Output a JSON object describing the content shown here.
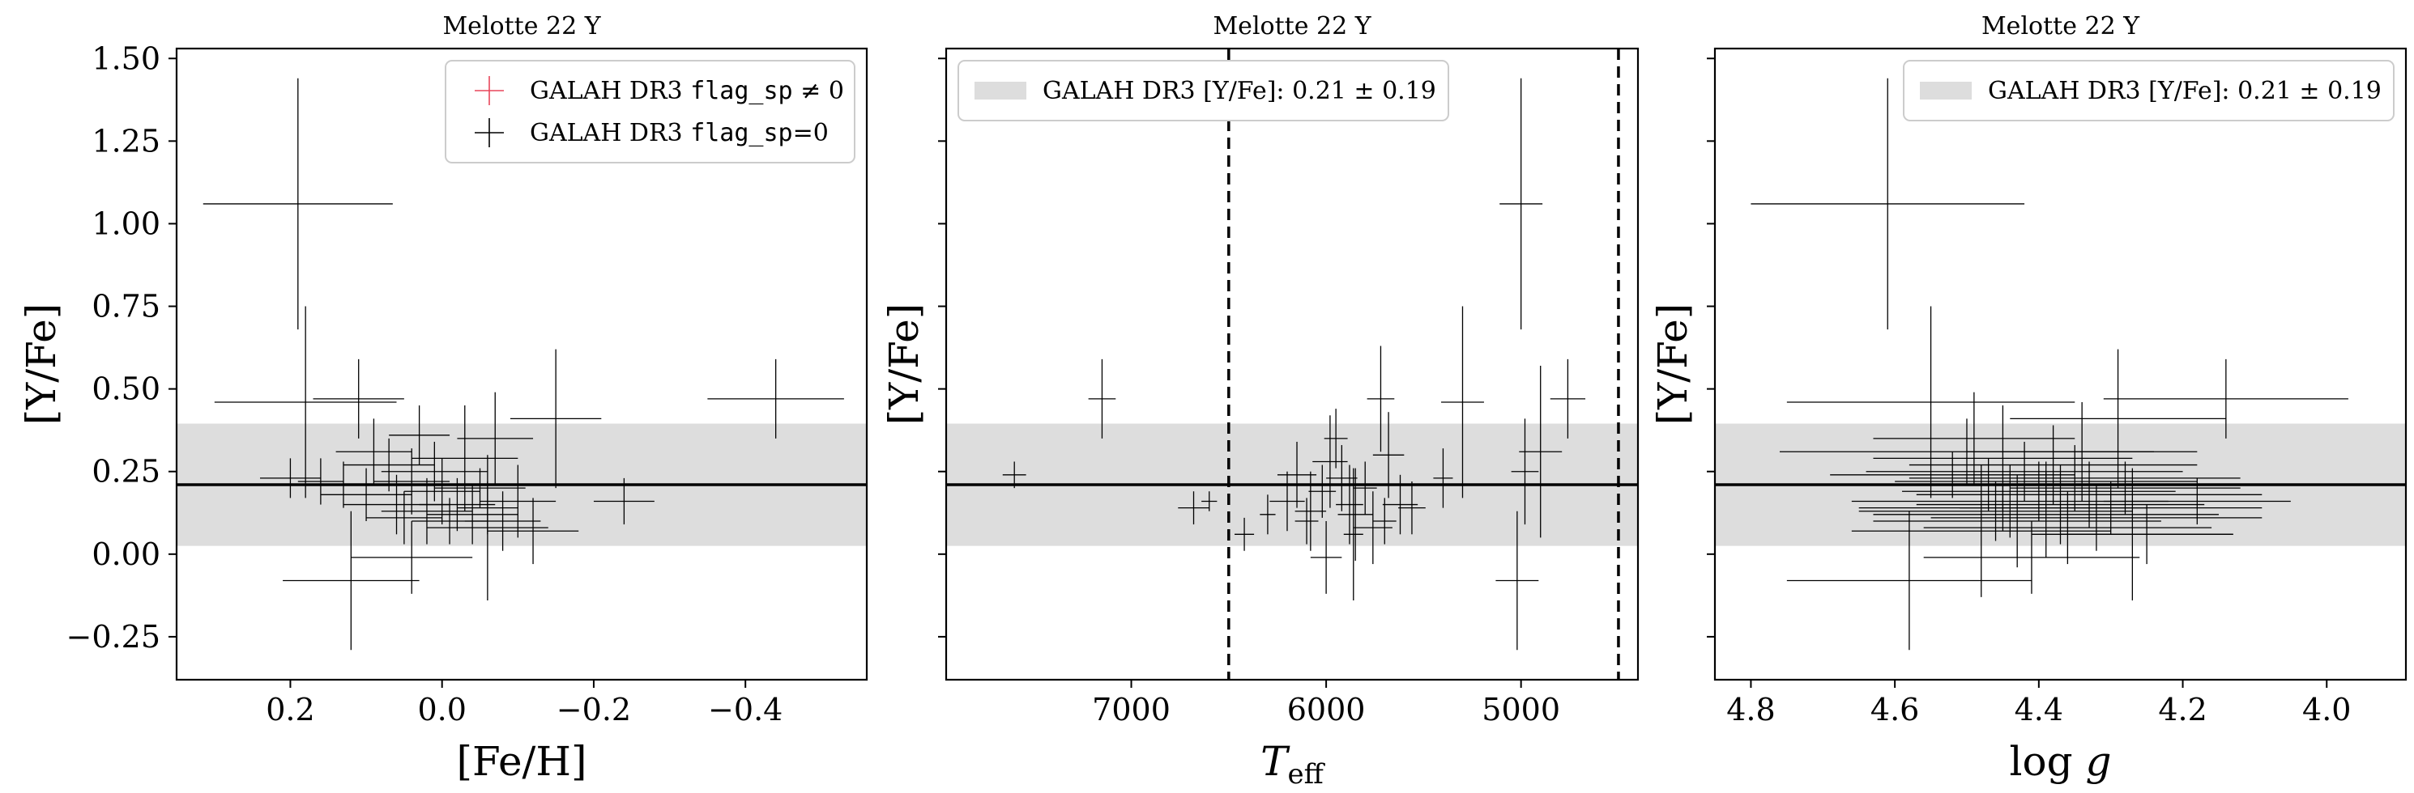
{
  "figure": {
    "colors": {
      "band": "#dddddd",
      "flagged": "#e8465a",
      "unflagged": "#000000"
    }
  },
  "chart_data": [
    {
      "type": "scatter",
      "title": "Melotte 22 Y",
      "xlabel": "[Fe/H]",
      "ylabel": "[Y/Fe]",
      "xlim": [
        0.35,
        -0.56
      ],
      "ylim": [
        -0.38,
        1.53
      ],
      "xticks": [
        {
          "v": 0.2,
          "t": "0.2"
        },
        {
          "v": 0.0,
          "t": "0.0"
        },
        {
          "v": -0.2,
          "t": "−0.2"
        },
        {
          "v": -0.4,
          "t": "−0.4"
        }
      ],
      "yticks": [
        {
          "v": -0.25,
          "t": "−0.25"
        },
        {
          "v": 0.0,
          "t": "0.00"
        },
        {
          "v": 0.25,
          "t": "0.25"
        },
        {
          "v": 0.5,
          "t": "0.50"
        },
        {
          "v": 0.75,
          "t": "0.75"
        },
        {
          "v": 1.0,
          "t": "1.00"
        },
        {
          "v": 1.25,
          "t": "1.25"
        },
        {
          "v": 1.5,
          "t": "1.50"
        }
      ],
      "show_ylabels": true,
      "legend": {
        "placement": "top-right",
        "entries": [
          {
            "prefix": "GALAH DR3 ",
            "code": "flag_sp",
            "suffix": " ≠ 0",
            "color": "#e8465a",
            "marker": "cross"
          },
          {
            "prefix": "GALAH DR3 ",
            "code": "flag_sp",
            "suffix": "=0",
            "color": "#000000",
            "marker": "cross"
          }
        ]
      },
      "band": {
        "center": 0.21,
        "half_width": 0.185
      },
      "series": [
        {
          "flag": "0",
          "points": [
            {
              "x": 0.19,
              "y": 1.06,
              "xe": 0.125,
              "ye": 0.38
            },
            {
              "x": 0.18,
              "y": 0.46,
              "xe": 0.12,
              "ye": 0.29
            },
            {
              "x": 0.11,
              "y": 0.47,
              "xe": 0.06,
              "ye": 0.12
            },
            {
              "x": -0.44,
              "y": 0.47,
              "xe": 0.09,
              "ye": 0.12
            },
            {
              "x": -0.15,
              "y": 0.41,
              "xe": 0.06,
              "ye": 0.21
            },
            {
              "x": 0.2,
              "y": 0.23,
              "xe": 0.04,
              "ye": 0.06
            },
            {
              "x": 0.16,
              "y": 0.22,
              "xe": 0.03,
              "ye": 0.07
            },
            {
              "x": 0.13,
              "y": 0.21,
              "xe": 0.05,
              "ye": 0.07
            },
            {
              "x": 0.1,
              "y": 0.18,
              "xe": 0.06,
              "ye": 0.08
            },
            {
              "x": 0.07,
              "y": 0.27,
              "xe": 0.06,
              "ye": 0.08
            },
            {
              "x": 0.04,
              "y": 0.22,
              "xe": 0.05,
              "ye": 0.1
            },
            {
              "x": 0.01,
              "y": 0.25,
              "xe": 0.07,
              "ye": 0.09
            },
            {
              "x": 0.0,
              "y": 0.19,
              "xe": 0.05,
              "ye": 0.1
            },
            {
              "x": -0.02,
              "y": 0.15,
              "xe": 0.05,
              "ye": 0.08
            },
            {
              "x": -0.04,
              "y": 0.12,
              "xe": 0.06,
              "ye": 0.09
            },
            {
              "x": -0.06,
              "y": 0.14,
              "xe": 0.04,
              "ye": 0.08
            },
            {
              "x": -0.08,
              "y": 0.1,
              "xe": 0.05,
              "ye": 0.09
            },
            {
              "x": -0.1,
              "y": 0.16,
              "xe": 0.05,
              "ye": 0.11
            },
            {
              "x": 0.02,
              "y": 0.13,
              "xe": 0.06,
              "ye": 0.1
            },
            {
              "x": 0.05,
              "y": 0.11,
              "xe": 0.05,
              "ye": 0.08
            },
            {
              "x": -0.03,
              "y": 0.29,
              "xe": 0.07,
              "ye": 0.16
            },
            {
              "x": -0.06,
              "y": 0.08,
              "xe": 0.08,
              "ye": 0.22
            },
            {
              "x": 0.12,
              "y": -0.08,
              "xe": 0.09,
              "ye": 0.21
            },
            {
              "x": 0.04,
              "y": -0.01,
              "xe": 0.08,
              "ye": 0.11
            },
            {
              "x": -0.12,
              "y": 0.07,
              "xe": 0.06,
              "ye": 0.1
            },
            {
              "x": -0.24,
              "y": 0.16,
              "xe": 0.04,
              "ye": 0.07
            },
            {
              "x": 0.09,
              "y": 0.31,
              "xe": 0.05,
              "ye": 0.1
            },
            {
              "x": -0.07,
              "y": 0.35,
              "xe": 0.05,
              "ye": 0.14
            },
            {
              "x": 0.06,
              "y": 0.15,
              "xe": 0.07,
              "ye": 0.09
            },
            {
              "x": -0.01,
              "y": 0.1,
              "xe": 0.05,
              "ye": 0.07
            },
            {
              "x": -0.05,
              "y": 0.2,
              "xe": 0.06,
              "ye": 0.06
            },
            {
              "x": 0.03,
              "y": 0.36,
              "xe": 0.04,
              "ye": 0.09
            }
          ]
        }
      ]
    },
    {
      "type": "scatter",
      "title": "Melotte 22 Y",
      "xlabel": "T_eff",
      "ylabel": "[Y/Fe]",
      "xlim": [
        7950,
        4400
      ],
      "ylim": [
        -0.38,
        1.53
      ],
      "xticks": [
        {
          "v": 7000,
          "t": "7000"
        },
        {
          "v": 6000,
          "t": "6000"
        },
        {
          "v": 5000,
          "t": "5000"
        }
      ],
      "yticks": [
        {
          "v": -0.25,
          "t": ""
        },
        {
          "v": 0.0,
          "t": ""
        },
        {
          "v": 0.25,
          "t": ""
        },
        {
          "v": 0.5,
          "t": ""
        },
        {
          "v": 0.75,
          "t": ""
        },
        {
          "v": 1.0,
          "t": ""
        },
        {
          "v": 1.25,
          "t": ""
        },
        {
          "v": 1.5,
          "t": ""
        }
      ],
      "show_ylabels": false,
      "legend": {
        "placement": "top-left",
        "entries": [
          {
            "prefix": "GALAH DR3 [Y/Fe]: 0.21 ± 0.19",
            "code": "",
            "suffix": "",
            "color": "#dddddd",
            "marker": "patch"
          }
        ]
      },
      "band": {
        "center": 0.21,
        "half_width": 0.185
      },
      "vlines": [
        6500,
        4500
      ],
      "series": [
        {
          "flag": "0",
          "points": [
            {
              "x": 7600,
              "y": 0.24,
              "xe": 60,
              "ye": 0.04
            },
            {
              "x": 7150,
              "y": 0.47,
              "xe": 70,
              "ye": 0.12
            },
            {
              "x": 6680,
              "y": 0.14,
              "xe": 80,
              "ye": 0.05
            },
            {
              "x": 6600,
              "y": 0.16,
              "xe": 40,
              "ye": 0.03
            },
            {
              "x": 6420,
              "y": 0.06,
              "xe": 50,
              "ye": 0.05
            },
            {
              "x": 6200,
              "y": 0.16,
              "xe": 90,
              "ye": 0.09
            },
            {
              "x": 6150,
              "y": 0.24,
              "xe": 100,
              "ye": 0.1
            },
            {
              "x": 6080,
              "y": 0.13,
              "xe": 80,
              "ye": 0.12
            },
            {
              "x": 6020,
              "y": 0.19,
              "xe": 70,
              "ye": 0.08
            },
            {
              "x": 5980,
              "y": 0.28,
              "xe": 90,
              "ye": 0.14
            },
            {
              "x": 5950,
              "y": 0.35,
              "xe": 60,
              "ye": 0.09
            },
            {
              "x": 5920,
              "y": 0.23,
              "xe": 80,
              "ye": 0.1
            },
            {
              "x": 5880,
              "y": 0.15,
              "xe": 70,
              "ye": 0.12
            },
            {
              "x": 5850,
              "y": 0.12,
              "xe": 90,
              "ye": 0.14
            },
            {
              "x": 5800,
              "y": 0.2,
              "xe": 60,
              "ye": 0.08
            },
            {
              "x": 5760,
              "y": 0.08,
              "xe": 100,
              "ye": 0.11
            },
            {
              "x": 5720,
              "y": 0.47,
              "xe": 70,
              "ye": 0.16
            },
            {
              "x": 5680,
              "y": 0.3,
              "xe": 80,
              "ye": 0.13
            },
            {
              "x": 5620,
              "y": 0.15,
              "xe": 90,
              "ye": 0.09
            },
            {
              "x": 5560,
              "y": 0.14,
              "xe": 70,
              "ye": 0.08
            },
            {
              "x": 5400,
              "y": 0.23,
              "xe": 50,
              "ye": 0.09
            },
            {
              "x": 5300,
              "y": 0.46,
              "xe": 110,
              "ye": 0.29
            },
            {
              "x": 5020,
              "y": -0.08,
              "xe": 110,
              "ye": 0.21
            },
            {
              "x": 5000,
              "y": 1.06,
              "xe": 110,
              "ye": 0.38
            },
            {
              "x": 4980,
              "y": 0.25,
              "xe": 70,
              "ye": 0.16
            },
            {
              "x": 4900,
              "y": 0.31,
              "xe": 110,
              "ye": 0.26
            },
            {
              "x": 4760,
              "y": 0.47,
              "xe": 90,
              "ye": 0.12
            },
            {
              "x": 6000,
              "y": -0.01,
              "xe": 80,
              "ye": 0.11
            },
            {
              "x": 5860,
              "y": 0.06,
              "xe": 50,
              "ye": 0.2
            },
            {
              "x": 6300,
              "y": 0.12,
              "xe": 40,
              "ye": 0.06
            },
            {
              "x": 5700,
              "y": 0.1,
              "xe": 60,
              "ye": 0.07
            },
            {
              "x": 6100,
              "y": 0.1,
              "xe": 60,
              "ye": 0.07
            }
          ]
        }
      ]
    },
    {
      "type": "scatter",
      "title": "Melotte 22 Y",
      "xlabel": "log g",
      "ylabel": "[Y/Fe]",
      "xlim": [
        4.85,
        3.89
      ],
      "ylim": [
        -0.38,
        1.53
      ],
      "xticks": [
        {
          "v": 4.8,
          "t": "4.8"
        },
        {
          "v": 4.6,
          "t": "4.6"
        },
        {
          "v": 4.4,
          "t": "4.4"
        },
        {
          "v": 4.2,
          "t": "4.2"
        },
        {
          "v": 4.0,
          "t": "4.0"
        }
      ],
      "yticks": [
        {
          "v": -0.25,
          "t": ""
        },
        {
          "v": 0.0,
          "t": ""
        },
        {
          "v": 0.25,
          "t": ""
        },
        {
          "v": 0.5,
          "t": ""
        },
        {
          "v": 0.75,
          "t": ""
        },
        {
          "v": 1.0,
          "t": ""
        },
        {
          "v": 1.25,
          "t": ""
        },
        {
          "v": 1.5,
          "t": ""
        }
      ],
      "show_ylabels": false,
      "legend": {
        "placement": "top-right",
        "entries": [
          {
            "prefix": "GALAH DR3 [Y/Fe]: 0.21 ± 0.19",
            "code": "",
            "suffix": "",
            "color": "#dddddd",
            "marker": "patch"
          }
        ]
      },
      "band": {
        "center": 0.21,
        "half_width": 0.185
      },
      "series": [
        {
          "flag": "0",
          "points": [
            {
              "x": 4.61,
              "y": 1.06,
              "xe": 0.19,
              "ye": 0.38
            },
            {
              "x": 4.55,
              "y": 0.46,
              "xe": 0.2,
              "ye": 0.29
            },
            {
              "x": 4.14,
              "y": 0.47,
              "xe": 0.17,
              "ye": 0.12
            },
            {
              "x": 4.29,
              "y": 0.41,
              "xe": 0.15,
              "ye": 0.21
            },
            {
              "x": 4.58,
              "y": -0.08,
              "xe": 0.17,
              "ye": 0.21
            },
            {
              "x": 4.5,
              "y": 0.31,
              "xe": 0.26,
              "ye": 0.1
            },
            {
              "x": 4.45,
              "y": 0.29,
              "xe": 0.18,
              "ye": 0.16
            },
            {
              "x": 4.38,
              "y": 0.27,
              "xe": 0.2,
              "ye": 0.12
            },
            {
              "x": 4.42,
              "y": 0.25,
              "xe": 0.22,
              "ye": 0.09
            },
            {
              "x": 4.35,
              "y": 0.23,
              "xe": 0.23,
              "ye": 0.1
            },
            {
              "x": 4.47,
              "y": 0.21,
              "xe": 0.25,
              "ye": 0.08
            },
            {
              "x": 4.4,
              "y": 0.19,
              "xe": 0.19,
              "ye": 0.09
            },
            {
              "x": 4.33,
              "y": 0.18,
              "xe": 0.24,
              "ye": 0.1
            },
            {
              "x": 4.44,
              "y": 0.16,
              "xe": 0.22,
              "ye": 0.11
            },
            {
              "x": 4.37,
              "y": 0.15,
              "xe": 0.2,
              "ye": 0.12
            },
            {
              "x": 4.3,
              "y": 0.14,
              "xe": 0.21,
              "ye": 0.08
            },
            {
              "x": 4.46,
              "y": 0.13,
              "xe": 0.19,
              "ye": 0.09
            },
            {
              "x": 4.39,
              "y": 0.12,
              "xe": 0.24,
              "ye": 0.13
            },
            {
              "x": 4.32,
              "y": 0.11,
              "xe": 0.23,
              "ye": 0.1
            },
            {
              "x": 4.43,
              "y": 0.1,
              "xe": 0.2,
              "ye": 0.14
            },
            {
              "x": 4.36,
              "y": 0.08,
              "xe": 0.2,
              "ye": 0.11
            },
            {
              "x": 4.48,
              "y": 0.07,
              "xe": 0.18,
              "ye": 0.2
            },
            {
              "x": 4.25,
              "y": 0.06,
              "xe": 0.12,
              "ye": 0.09
            },
            {
              "x": 4.28,
              "y": 0.2,
              "xe": 0.16,
              "ye": 0.08
            },
            {
              "x": 4.52,
              "y": 0.24,
              "xe": 0.17,
              "ye": 0.07
            },
            {
              "x": 4.41,
              "y": -0.01,
              "xe": 0.15,
              "ye": 0.11
            },
            {
              "x": 4.18,
              "y": 0.16,
              "xe": 0.13,
              "ye": 0.07
            },
            {
              "x": 4.27,
              "y": 0.06,
              "xe": 0.14,
              "ye": 0.2
            },
            {
              "x": 4.49,
              "y": 0.35,
              "xe": 0.14,
              "ye": 0.14
            },
            {
              "x": 4.34,
              "y": 0.31,
              "xe": 0.16,
              "ye": 0.15
            },
            {
              "x": 4.45,
              "y": 0.14,
              "xe": 0.2,
              "ye": 0.07
            },
            {
              "x": 4.39,
              "y": 0.22,
              "xe": 0.21,
              "ye": 0.06
            }
          ]
        }
      ]
    }
  ]
}
